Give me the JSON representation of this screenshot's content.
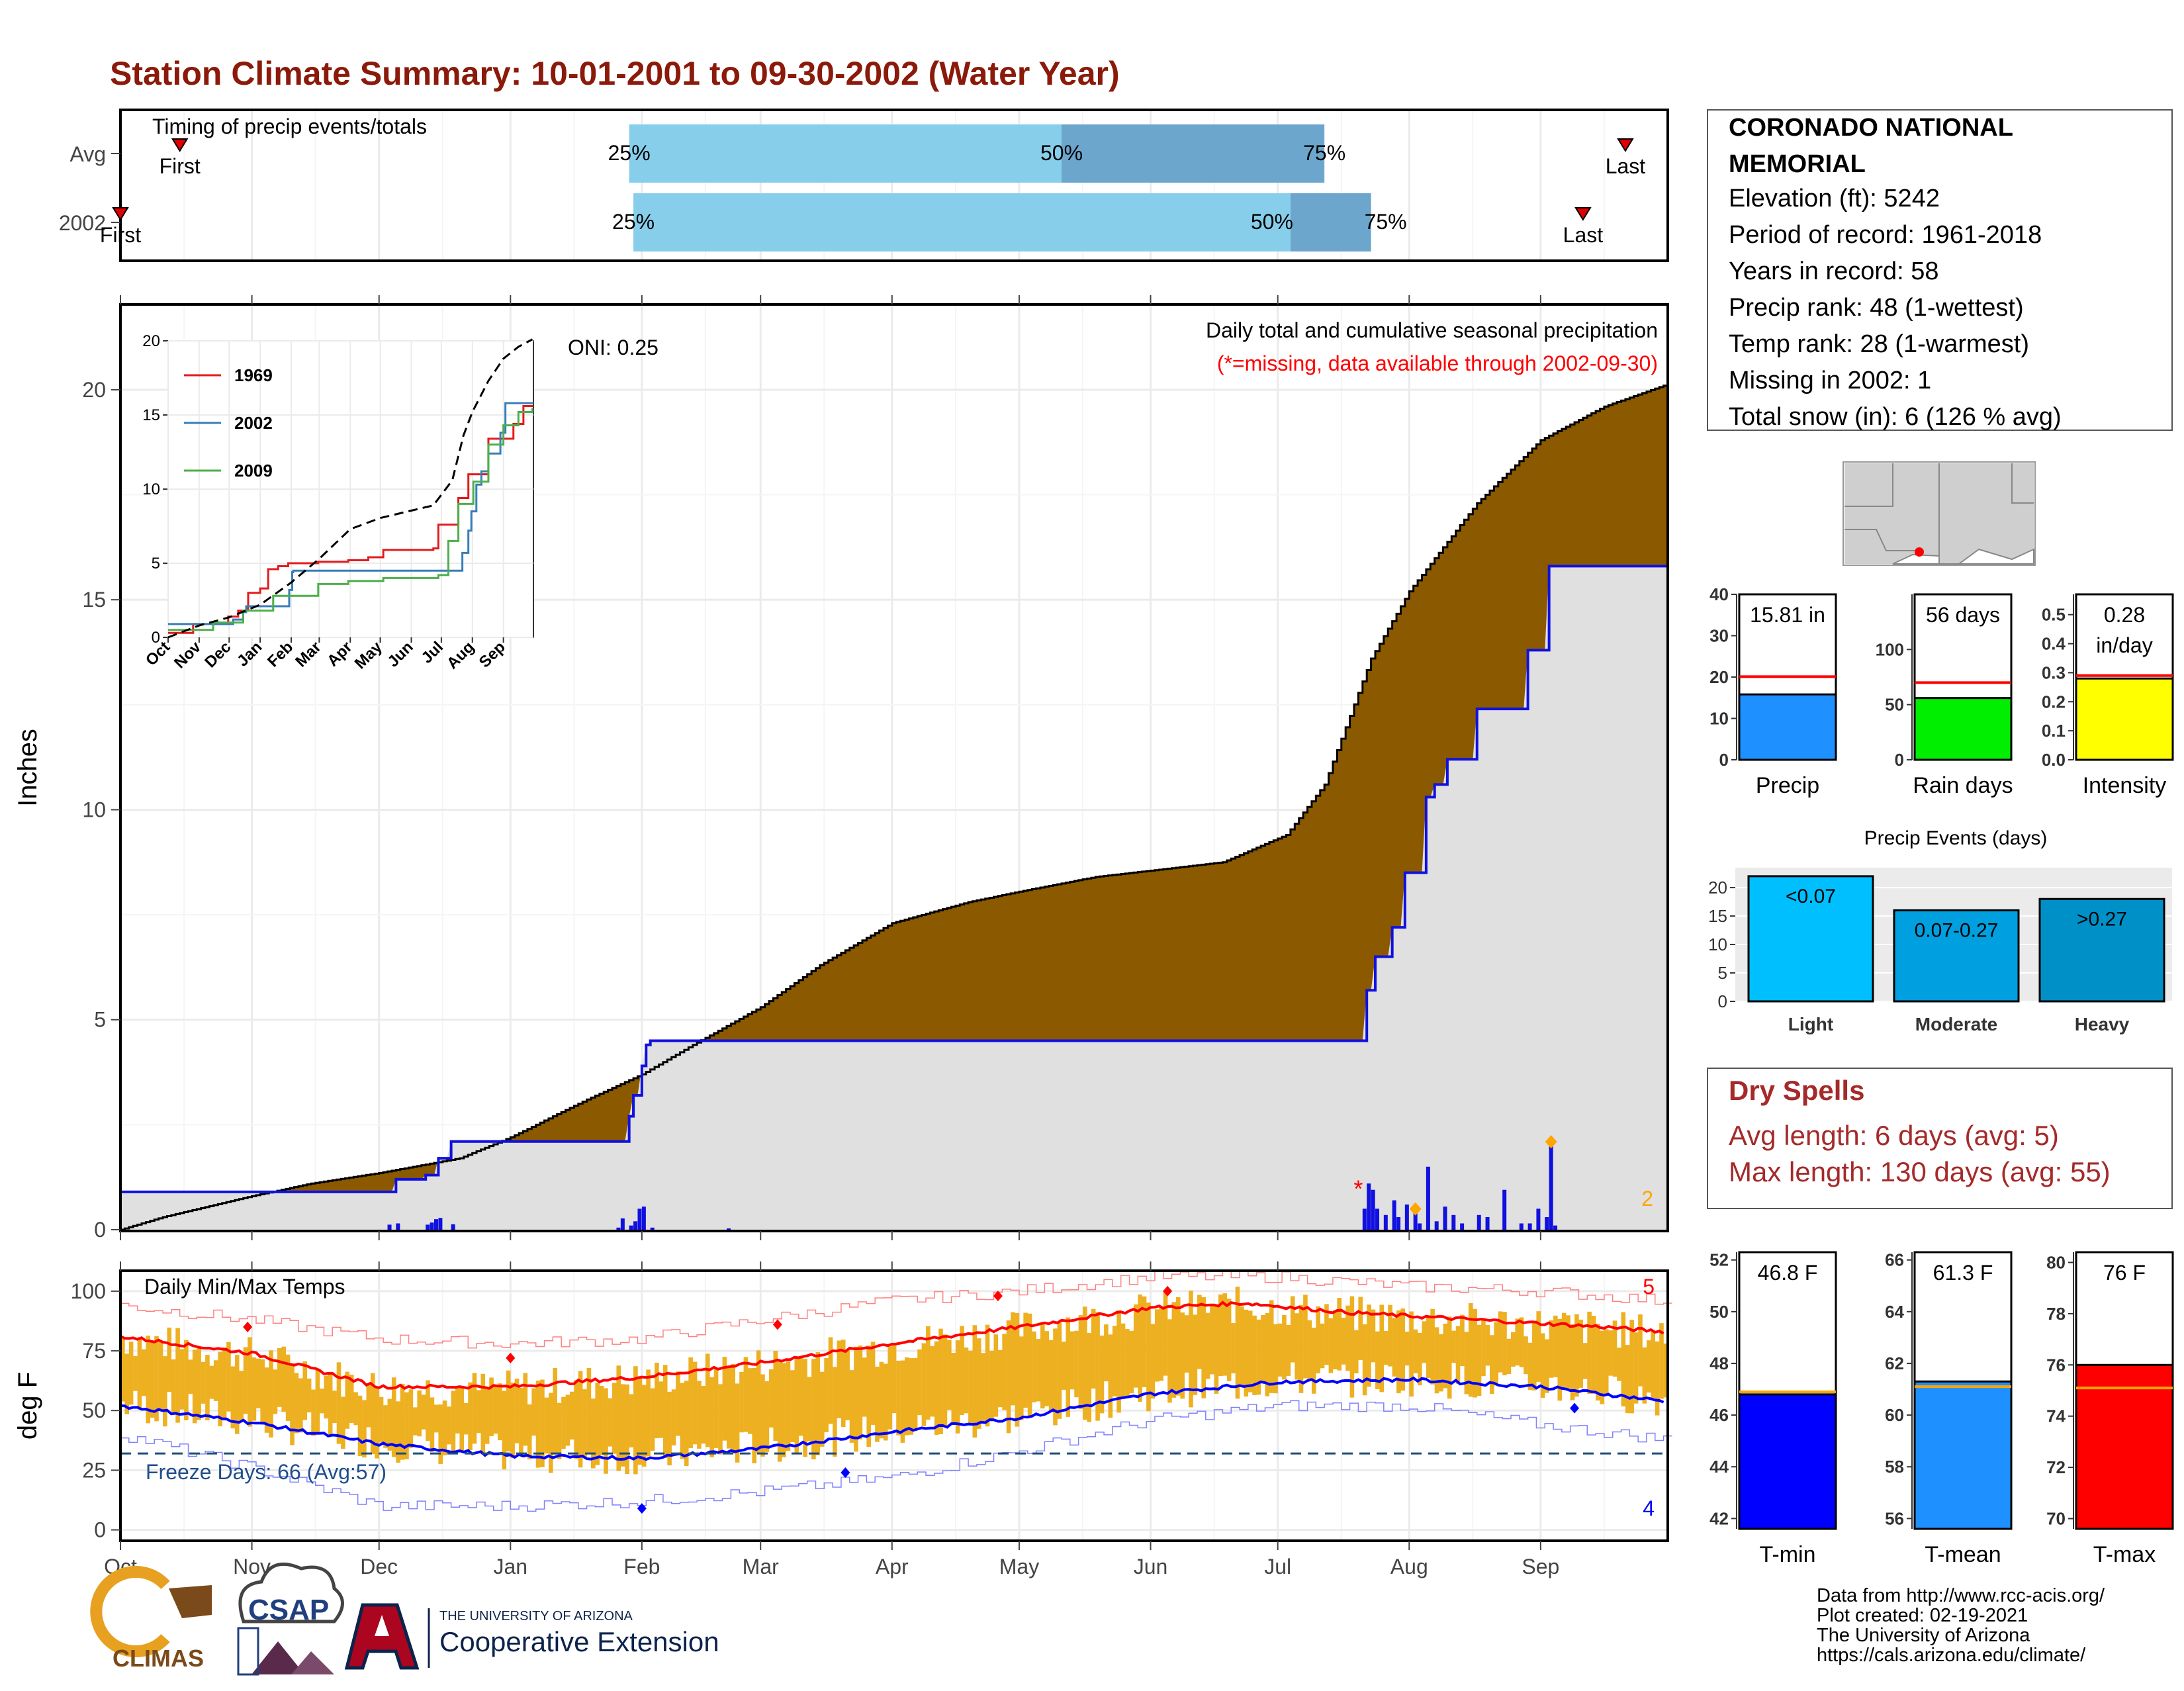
{
  "page": {
    "title": "Station Climate Summary: 10-01-2001 to 09-30-2002 (Water Year)",
    "footer_lines": [
      "Data from http://www.rcc-acis.org/",
      "Plot created: 02-19-2021",
      "The University of Arizona",
      "https://cals.arizona.edu/climate/"
    ],
    "logos": {
      "climas": "CLIMAS",
      "csap": "CSAP",
      "university_small": "THE UNIVERSITY OF ARIZONA",
      "extension": "Cooperative Extension"
    },
    "colors": {
      "title": "#8B1A0A",
      "brown": "#8B5A00",
      "gray_fill": "#E0E0E0",
      "blue": "#1010E0",
      "gold": "#EDB021",
      "red": "#FF0000"
    }
  },
  "station": {
    "name_line1": "CORONADO NATIONAL",
    "name_line2": "MEMORIAL",
    "elevation": "Elevation (ft): 5242",
    "period": "Period of record: 1961-2018",
    "years": "Years in record: 58",
    "precip_rank": "Precip rank: 48 (1-wettest)",
    "temp_rank": "Temp rank: 28 (1-warmest)",
    "missing": "Missing in 2002: 1",
    "snow": "Total snow (in): 6 (126 % avg)"
  },
  "dry_spells": {
    "title": "Dry Spells",
    "avg": "Avg length: 6 days (avg: 5)",
    "max": "Max length: 130 days (avg: 55)"
  },
  "chart_data": [
    {
      "id": "timing",
      "type": "bar",
      "title": "Timing of precip events/totals",
      "rows": [
        "Avg",
        "2002"
      ],
      "pct_labels": [
        "25%",
        "50%",
        "75%"
      ],
      "marker_labels": [
        "First",
        "Last"
      ],
      "avg": {
        "first_day": 14,
        "q25": 120,
        "q50": 222,
        "q75": 284,
        "last_day": 355
      },
      "y2002": {
        "first_day": 0,
        "q25": 121,
        "q50": 276,
        "q75": 295,
        "last_day": 345
      }
    },
    {
      "id": "precip",
      "type": "area",
      "ylabel": "Inches",
      "ylim": [
        0,
        22
      ],
      "yticks": [
        0,
        5,
        10,
        15,
        20
      ],
      "xlabels": [
        "Oct",
        "Nov",
        "Dec",
        "Jan",
        "Feb",
        "Mar",
        "Apr",
        "May",
        "Jun",
        "Jul",
        "Aug",
        "Sep"
      ],
      "month_start_days": [
        0,
        31,
        61,
        92,
        123,
        151,
        182,
        212,
        243,
        273,
        304,
        335
      ],
      "annotation_title": "Daily total and cumulative seasonal precipitation",
      "annotation_missing": "(*=missing, data available through 2002-09-30)",
      "oni": "ONI: 0.25",
      "corner_count": "2",
      "avg_cumulative": [
        [
          0,
          0
        ],
        [
          10,
          0.3
        ],
        [
          31,
          0.8
        ],
        [
          45,
          1.1
        ],
        [
          61,
          1.35
        ],
        [
          80,
          1.7
        ],
        [
          92,
          2.2
        ],
        [
          110,
          3.1
        ],
        [
          123,
          3.7
        ],
        [
          135,
          4.4
        ],
        [
          151,
          5.3
        ],
        [
          165,
          6.3
        ],
        [
          182,
          7.3
        ],
        [
          200,
          7.8
        ],
        [
          212,
          8.05
        ],
        [
          230,
          8.4
        ],
        [
          243,
          8.55
        ],
        [
          260,
          8.75
        ],
        [
          275,
          9.4
        ],
        [
          284,
          10.6
        ],
        [
          295,
          13.6
        ],
        [
          304,
          15.2
        ],
        [
          320,
          17.3
        ],
        [
          335,
          18.8
        ],
        [
          350,
          19.6
        ],
        [
          364,
          20.1
        ]
      ],
      "cum_2002_steps": [
        [
          0,
          0.9
        ],
        [
          63,
          0.9
        ],
        [
          65,
          1.2
        ],
        [
          72,
          1.3
        ],
        [
          75,
          1.7
        ],
        [
          78,
          2.1
        ],
        [
          118,
          2.1
        ],
        [
          120,
          2.7
        ],
        [
          121,
          3.2
        ],
        [
          123,
          3.9
        ],
        [
          124,
          4.4
        ],
        [
          125,
          4.5
        ],
        [
          293,
          4.5
        ],
        [
          294,
          5.7
        ],
        [
          296,
          6.5
        ],
        [
          300,
          7.2
        ],
        [
          303,
          8.5
        ],
        [
          308,
          10.3
        ],
        [
          310,
          10.6
        ],
        [
          313,
          11.2
        ],
        [
          320,
          12.4
        ],
        [
          330,
          12.4
        ],
        [
          332,
          13.8
        ],
        [
          336,
          13.8
        ],
        [
          337,
          15.8
        ],
        [
          364,
          15.8
        ]
      ],
      "daily_bars": [
        [
          63,
          0.12
        ],
        [
          65,
          0.15
        ],
        [
          72,
          0.12
        ],
        [
          73,
          0.17
        ],
        [
          74,
          0.25
        ],
        [
          75,
          0.28
        ],
        [
          78,
          0.13
        ],
        [
          117,
          0.05
        ],
        [
          118,
          0.27
        ],
        [
          120,
          0.1
        ],
        [
          121,
          0.2
        ],
        [
          122,
          0.5
        ],
        [
          123,
          0.55
        ],
        [
          125,
          0.05
        ],
        [
          143,
          0.03
        ],
        [
          293,
          0.5
        ],
        [
          294,
          1.1
        ],
        [
          295,
          0.95
        ],
        [
          296,
          0.5
        ],
        [
          298,
          0.35
        ],
        [
          300,
          0.7
        ],
        [
          301,
          0.3
        ],
        [
          303,
          0.6
        ],
        [
          305,
          0.4
        ],
        [
          306,
          0.15
        ],
        [
          308,
          1.5
        ],
        [
          310,
          0.2
        ],
        [
          312,
          0.55
        ],
        [
          314,
          0.35
        ],
        [
          316,
          0.15
        ],
        [
          320,
          0.35
        ],
        [
          322,
          0.3
        ],
        [
          326,
          0.95
        ],
        [
          330,
          0.15
        ],
        [
          332,
          0.15
        ],
        [
          334,
          0.5
        ],
        [
          336,
          0.3
        ],
        [
          337,
          2.0
        ],
        [
          338,
          0.1
        ]
      ],
      "missing_day": 292,
      "record_markers": [
        305,
        337
      ],
      "inset": {
        "ylim": [
          0,
          20
        ],
        "yticks": [
          0,
          5,
          10,
          15,
          20
        ],
        "xlabels": [
          "Oct",
          "Nov",
          "Dec",
          "Jan",
          "Feb",
          "Mar",
          "Apr",
          "May",
          "Jun",
          "Jul",
          "Aug",
          "Sep"
        ],
        "series": [
          {
            "name": "1969",
            "color": "#E41A1C",
            "values": [
              [
                0,
                0.3
              ],
              [
                20,
                0.3
              ],
              [
                25,
                0.9
              ],
              [
                55,
                0.9
              ],
              [
                60,
                1.4
              ],
              [
                70,
                1.8
              ],
              [
                80,
                3.0
              ],
              [
                92,
                3.3
              ],
              [
                100,
                4.6
              ],
              [
                110,
                4.8
              ],
              [
                120,
                5.0
              ],
              [
                150,
                5.1
              ],
              [
                180,
                5.2
              ],
              [
                200,
                5.4
              ],
              [
                215,
                5.9
              ],
              [
                265,
                6.0
              ],
              [
                270,
                7.6
              ],
              [
                290,
                9.4
              ],
              [
                300,
                11.0
              ],
              [
                320,
                13.4
              ],
              [
                345,
                14.4
              ],
              [
                355,
                15.6
              ],
              [
                364,
                15.6
              ]
            ]
          },
          {
            "name": "2002",
            "color": "#377EB8",
            "values": [
              [
                0,
                0.9
              ],
              [
                63,
                0.9
              ],
              [
                65,
                1.2
              ],
              [
                75,
                1.7
              ],
              [
                78,
                2.1
              ],
              [
                118,
                2.1
              ],
              [
                121,
                3.2
              ],
              [
                124,
                4.4
              ],
              [
                125,
                4.5
              ],
              [
                293,
                4.5
              ],
              [
                294,
                5.7
              ],
              [
                300,
                7.2
              ],
              [
                303,
                8.5
              ],
              [
                308,
                10.3
              ],
              [
                313,
                11.2
              ],
              [
                320,
                12.4
              ],
              [
                332,
                13.8
              ],
              [
                337,
                15.8
              ],
              [
                364,
                15.8
              ]
            ]
          },
          {
            "name": "2009",
            "color": "#4DAF4A",
            "values": [
              [
                0,
                0.5
              ],
              [
                40,
                0.5
              ],
              [
                45,
                1.0
              ],
              [
                70,
                1.0
              ],
              [
                75,
                1.8
              ],
              [
                100,
                1.8
              ],
              [
                105,
                2.8
              ],
              [
                140,
                2.8
              ],
              [
                150,
                3.6
              ],
              [
                180,
                3.8
              ],
              [
                215,
                4.0
              ],
              [
                270,
                4.2
              ],
              [
                280,
                6.5
              ],
              [
                290,
                9.0
              ],
              [
                305,
                10.5
              ],
              [
                320,
                13.0
              ],
              [
                335,
                14.3
              ],
              [
                350,
                15.2
              ],
              [
                364,
                15.4
              ]
            ]
          }
        ],
        "avg_line": [
          [
            0,
            0
          ],
          [
            31,
            0.8
          ],
          [
            61,
            1.35
          ],
          [
            92,
            2.2
          ],
          [
            123,
            3.7
          ],
          [
            151,
            5.3
          ],
          [
            182,
            7.3
          ],
          [
            212,
            8.05
          ],
          [
            243,
            8.55
          ],
          [
            265,
            8.9
          ],
          [
            284,
            10.6
          ],
          [
            295,
            13.6
          ],
          [
            304,
            15.2
          ],
          [
            320,
            17.3
          ],
          [
            335,
            18.8
          ],
          [
            350,
            19.6
          ],
          [
            364,
            20.1
          ]
        ]
      }
    },
    {
      "id": "bar_precip",
      "type": "bar",
      "label": "Precip",
      "value_label": "15.81 in",
      "value": 15.81,
      "avg": 20.1,
      "ylim": [
        0,
        40
      ],
      "yticks": [
        "0",
        "10",
        "20",
        "30",
        "40"
      ],
      "color": "#1E90FF"
    },
    {
      "id": "bar_raindays",
      "type": "bar",
      "label": "Rain days",
      "value_label": "56 days",
      "value": 56,
      "avg": 70,
      "ylim": [
        0,
        150
      ],
      "yticks": [
        "0",
        "50",
        "100"
      ],
      "color": "#00EE00"
    },
    {
      "id": "bar_intensity",
      "type": "bar",
      "label": "Intensity",
      "value_label": "0.28",
      "value_label2": "in/day",
      "value": 0.28,
      "avg": 0.29,
      "ylim": [
        0,
        0.57
      ],
      "yticks": [
        "0.0",
        "0.1",
        "0.2",
        "0.3",
        "0.4",
        "0.5"
      ],
      "color": "#FFFF00"
    },
    {
      "id": "events",
      "type": "bar",
      "title": "Precip Events (days)",
      "categories": [
        "Light",
        "Moderate",
        "Heavy"
      ],
      "labels": [
        "<0.07",
        "0.07-0.27",
        ">0.27"
      ],
      "values": [
        22,
        16,
        18
      ],
      "colors": [
        "#00BFFF",
        "#00A0E0",
        "#0090C8"
      ],
      "ylim": [
        0,
        23.5
      ],
      "yticks": [
        "0",
        "5",
        "10",
        "15",
        "20"
      ]
    },
    {
      "id": "temps",
      "type": "bar",
      "title": "Daily Min/Max Temps",
      "ylabel": "deg F",
      "ylim": [
        -4,
        108
      ],
      "yticks": [
        "0",
        "25",
        "50",
        "75",
        "100"
      ],
      "xlabels": [
        "Oct",
        "Nov",
        "Dec",
        "Jan",
        "Feb",
        "Mar",
        "Apr",
        "May",
        "Jun",
        "Jul",
        "Aug",
        "Sep"
      ],
      "freeze_label": "Freeze Days: 66 (Avg:57)",
      "freeze_line": 32,
      "max_count": "5",
      "min_count": "4",
      "avg_max": [
        [
          0,
          81
        ],
        [
          31,
          74
        ],
        [
          61,
          60
        ],
        [
          92,
          60
        ],
        [
          123,
          64
        ],
        [
          151,
          70
        ],
        [
          182,
          78
        ],
        [
          212,
          85
        ],
        [
          243,
          93
        ],
        [
          265,
          95
        ],
        [
          290,
          91
        ],
        [
          320,
          88
        ],
        [
          350,
          85
        ],
        [
          364,
          83
        ]
      ],
      "avg_min": [
        [
          0,
          52
        ],
        [
          31,
          45
        ],
        [
          61,
          36
        ],
        [
          92,
          31
        ],
        [
          123,
          30
        ],
        [
          151,
          34
        ],
        [
          182,
          41
        ],
        [
          212,
          47
        ],
        [
          243,
          57
        ],
        [
          273,
          62
        ],
        [
          304,
          63
        ],
        [
          335,
          60
        ],
        [
          364,
          54
        ]
      ],
      "record_high": [
        [
          0,
          94
        ],
        [
          31,
          88
        ],
        [
          61,
          80
        ],
        [
          92,
          78
        ],
        [
          123,
          80
        ],
        [
          151,
          88
        ],
        [
          182,
          96
        ],
        [
          212,
          100
        ],
        [
          243,
          106
        ],
        [
          273,
          106
        ],
        [
          304,
          102
        ],
        [
          335,
          100
        ],
        [
          364,
          96
        ]
      ],
      "record_low": [
        [
          0,
          40
        ],
        [
          31,
          26
        ],
        [
          61,
          10
        ],
        [
          92,
          10
        ],
        [
          123,
          12
        ],
        [
          151,
          16
        ],
        [
          182,
          22
        ],
        [
          212,
          33
        ],
        [
          243,
          46
        ],
        [
          273,
          52
        ],
        [
          304,
          52
        ],
        [
          335,
          44
        ],
        [
          364,
          38
        ]
      ],
      "high_markers": [
        [
          30,
          85
        ],
        [
          92,
          72
        ],
        [
          155,
          86
        ],
        [
          207,
          98
        ],
        [
          247,
          100
        ]
      ],
      "low_markers": [
        [
          123,
          9
        ],
        [
          171,
          24
        ],
        [
          343,
          51
        ]
      ]
    },
    {
      "id": "bar_tmin",
      "type": "bar",
      "label": "T-min",
      "value_label": "46.8 F",
      "value": 46.8,
      "avg": 46.9,
      "ylim": [
        41.6,
        52.3
      ],
      "yticks": [
        "42",
        "44",
        "46",
        "48",
        "50",
        "52"
      ],
      "color": "#0000FF"
    },
    {
      "id": "bar_tmean",
      "type": "bar",
      "label": "T-mean",
      "value_label": "61.3 F",
      "value": 61.3,
      "avg": 61.1,
      "ylim": [
        55.6,
        66.3
      ],
      "yticks": [
        "56",
        "58",
        "60",
        "62",
        "64",
        "66"
      ],
      "color": "#1E90FF"
    },
    {
      "id": "bar_tmax",
      "type": "bar",
      "label": "T-max",
      "value_label": "76 F",
      "value": 76.0,
      "avg": 75.1,
      "ylim": [
        69.6,
        80.4
      ],
      "yticks": [
        "70",
        "72",
        "74",
        "76",
        "78",
        "80"
      ],
      "color": "#FF0000"
    }
  ]
}
